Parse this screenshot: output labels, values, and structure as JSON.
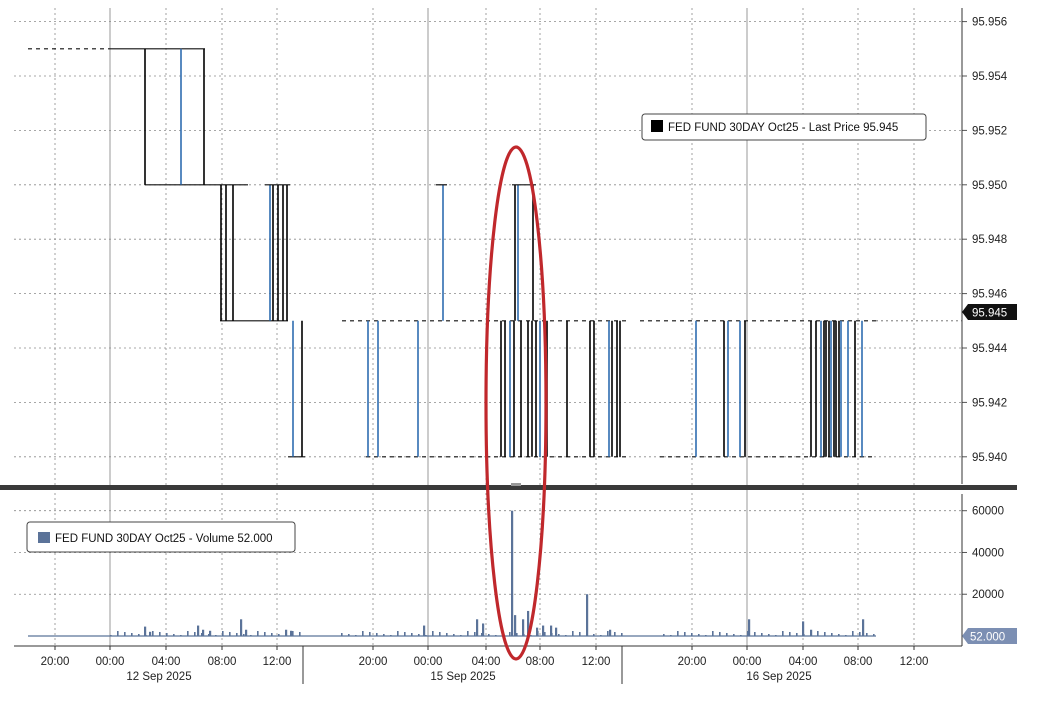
{
  "chart_data": [
    {
      "type": "line",
      "series": [
        {
          "name": "FED FUND 30DAY Oct25",
          "color": "#000000",
          "accent": "#2f6db0"
        }
      ],
      "legend_text": "FED FUND 30DAY Oct25 - Last Price 95.945",
      "legend_position": "top-right",
      "last_value_label": "95.945",
      "ylim": [
        95.939,
        95.9565
      ],
      "y_ticks": [
        "95.956",
        "95.954",
        "95.952",
        "95.950",
        "95.948",
        "95.946",
        "95.944",
        "95.942",
        "95.940"
      ],
      "levels": [
        95.955,
        95.95,
        95.945,
        95.94
      ],
      "grid": true,
      "annotation": "red-ellipse"
    },
    {
      "type": "bar",
      "series": [
        {
          "name": "FED FUND 30DAY Oct25",
          "color": "#5b7399"
        }
      ],
      "legend_text": "FED FUND 30DAY Oct25 - Volume 52.000",
      "legend_position": "top-left",
      "last_value_label": "52.000",
      "ylim": [
        0,
        68000
      ],
      "y_ticks": [
        "60000",
        "40000",
        "20000"
      ],
      "spike_values": [
        4500,
        2000,
        5000,
        3000,
        2500,
        6000,
        8000,
        3000,
        8000,
        60000,
        10000,
        8000,
        12000,
        4000,
        5000,
        20000,
        7000,
        3000,
        8000,
        2500
      ],
      "grid": true
    }
  ],
  "x_axis": {
    "time_labels": [
      "20:00",
      "00:00",
      "04:00",
      "08:00",
      "12:00",
      "20:00",
      "00:00",
      "04:00",
      "08:00",
      "12:00",
      "20:00",
      "00:00",
      "04:00",
      "08:00",
      "12:00"
    ],
    "date_labels": [
      "12 Sep 2025",
      "15 Sep 2025",
      "16 Sep 2025"
    ]
  }
}
